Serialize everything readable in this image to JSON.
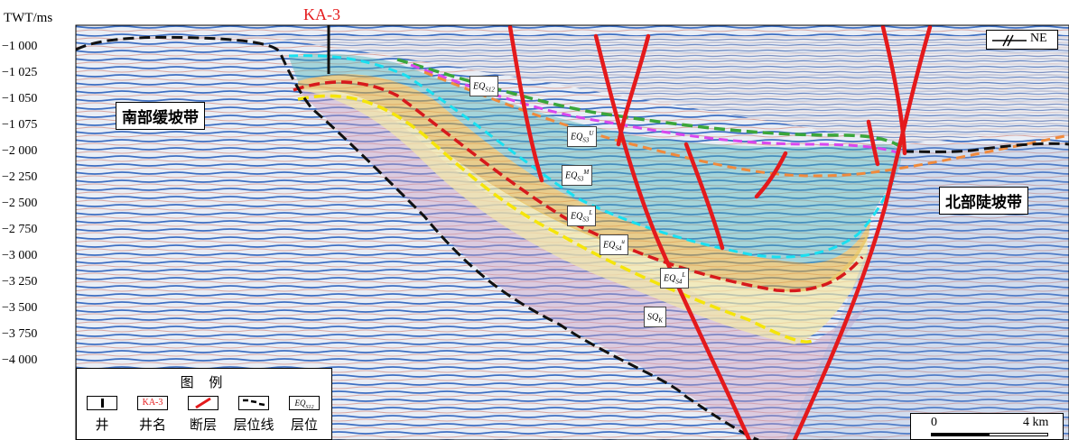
{
  "well": {
    "name": "KA-3"
  },
  "axis": {
    "title": "TWT/ms",
    "ticks": [
      "−1 000",
      "−1 025",
      "−1 050",
      "−1 075",
      "−2 000",
      "−2 250",
      "−2 500",
      "−2 750",
      "−3 000",
      "−3 250",
      "−3 500",
      "−3 750",
      "−4 000"
    ]
  },
  "regions": {
    "south": "南部缓坡带",
    "north": "北部陡坡带"
  },
  "horizons": [
    {
      "base": "EQ",
      "sub": "S12",
      "sup": ""
    },
    {
      "base": "EQ",
      "sub": "S3",
      "sup": "U"
    },
    {
      "base": "EQ",
      "sub": "S3",
      "sup": "M"
    },
    {
      "base": "EQ",
      "sub": "S3",
      "sup": "L"
    },
    {
      "base": "EQ",
      "sub": "S4",
      "sup": "u"
    },
    {
      "base": "EQ",
      "sub": "S4",
      "sup": "L"
    },
    {
      "base": "SQ",
      "sub": "K",
      "sup": ""
    }
  ],
  "legend": {
    "title": "图 例",
    "items": [
      {
        "label": "井",
        "symbol": "well-symbol"
      },
      {
        "label": "井名",
        "symbol": "well-name-symbol",
        "sample": "KA-3"
      },
      {
        "label": "断层",
        "symbol": "fault-symbol"
      },
      {
        "label": "层位线",
        "symbol": "horizon-line-symbol"
      },
      {
        "label": "层位",
        "symbol": "horizon-symbol",
        "sample_base": "EQ",
        "sample_sub": "S12"
      }
    ]
  },
  "direction": {
    "label": "NE"
  },
  "scale": {
    "start": "0",
    "end": "4 km"
  },
  "colors": {
    "fault": "#e41a1c",
    "well_name": "#e41a1c",
    "cyan_horizon": "#19e0f0",
    "green_horizon": "#3aa63a",
    "magenta_horizon": "#d946ef",
    "orange_horizon": "#f08a3c",
    "red_horizon": "#d7191c",
    "yellow_horizon": "#f5e50a",
    "base_horizon": "#111111",
    "seismic_blue": "#4a78c8"
  }
}
